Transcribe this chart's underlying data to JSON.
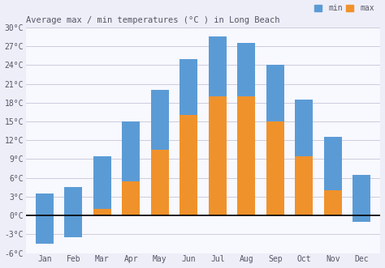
{
  "title": "Average max / min temperatures (°C ) in Long Beach",
  "months": [
    "Jan",
    "Feb",
    "Mar",
    "Apr",
    "May",
    "Jun",
    "Jul",
    "Aug",
    "Sep",
    "Oct",
    "Nov",
    "Dec"
  ],
  "min_temps": [
    -4.5,
    -3.5,
    1,
    5.5,
    10.5,
    16,
    19,
    19,
    15,
    9.5,
    4,
    -1
  ],
  "max_temps": [
    3.5,
    4.5,
    9.5,
    15,
    20,
    25,
    28.5,
    27.5,
    24,
    18.5,
    12.5,
    6.5
  ],
  "min_color": "#5b9bd5",
  "max_color": "#f0922b",
  "ylim": [
    -6,
    30
  ],
  "yticks": [
    -6,
    -3,
    0,
    3,
    6,
    9,
    12,
    15,
    18,
    21,
    24,
    27,
    30
  ],
  "ytick_labels": [
    "-6°C",
    "-3°C",
    "0°C",
    "3°C",
    "6°C",
    "9°C",
    "12°C",
    "15°C",
    "18°C",
    "21°C",
    "24°C",
    "27°C",
    "30°C"
  ],
  "legend_min_label": "min",
  "legend_max_label": "max",
  "bg_color": "#eeeef8",
  "plot_bg_color": "#f8f8ff",
  "grid_color": "#ccccdd",
  "bar_width": 0.62,
  "font_color": "#555566"
}
